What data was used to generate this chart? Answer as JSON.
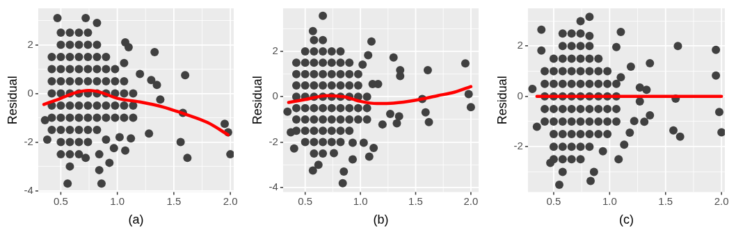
{
  "chart_data": [
    {
      "type": "scatter",
      "xlabel": "(a)",
      "ylabel": "Residual",
      "xlim": [
        0.3,
        2.03
      ],
      "ylim": [
        -4.05,
        3.5
      ],
      "xticks": [
        {
          "value": 0.5,
          "label": "0.5"
        },
        {
          "value": 0.75,
          "label": null
        },
        {
          "value": 1,
          "label": "1.0"
        },
        {
          "value": 1.25,
          "label": null
        },
        {
          "value": 1.5,
          "label": "1.5"
        },
        {
          "value": 1.75,
          "label": null
        },
        {
          "value": 2,
          "label": "2.0"
        }
      ],
      "yticks": [
        -4,
        {
          "value": -3,
          "label": null
        },
        -2,
        {
          "value": -1,
          "label": null
        },
        0,
        {
          "value": 1,
          "label": null
        },
        2,
        {
          "value": 3,
          "label": null
        }
      ],
      "grid": true,
      "legend": false,
      "series": [
        {
          "type": "scatter",
          "color": "#404040",
          "marker": "circle",
          "x": [
            0.42,
            0.42,
            0.42,
            0.42,
            0.42,
            0.42,
            0.42,
            0.5,
            0.5,
            0.5,
            0.5,
            0.5,
            0.5,
            0.5,
            0.5,
            0.5,
            0.5,
            0.5,
            0.58,
            0.58,
            0.58,
            0.58,
            0.58,
            0.58,
            0.58,
            0.58,
            0.58,
            0.58,
            0.58,
            0.58,
            0.66,
            0.66,
            0.66,
            0.66,
            0.66,
            0.66,
            0.66,
            0.66,
            0.66,
            0.66,
            0.66,
            0.74,
            0.74,
            0.74,
            0.74,
            0.74,
            0.74,
            0.74,
            0.74,
            0.74,
            0.74,
            0.82,
            0.82,
            0.82,
            0.82,
            0.82,
            0.82,
            0.82,
            0.82,
            0.9,
            0.9,
            0.9,
            0.9,
            0.9,
            0.9,
            0.98,
            0.98,
            0.98,
            0.98,
            0.98,
            1.06,
            1.06,
            1.06,
            1.06,
            1.14,
            1.14,
            1.14,
            0.47,
            0.72,
            0.82,
            0.56,
            0.86,
            0.84,
            0.93,
            0.84,
            0.72,
            0.97,
            1.07,
            1.12,
            1.28,
            1.07,
            1.1,
            1.33,
            1.06,
            1.6,
            1.2,
            1.3,
            1.35,
            1.38,
            1.58,
            1.56,
            1.62,
            1.95,
            1.98,
            2.0,
            0.36,
            0.38,
            0.9,
            1.02
          ],
          "values": [
            -1.5,
            -1,
            -0.5,
            0,
            0.5,
            1,
            1.5,
            -2.5,
            -2,
            -1.5,
            -1,
            -0.5,
            0,
            0.5,
            1,
            1.5,
            2,
            2.5,
            -3,
            -2.5,
            -2,
            -1.5,
            -1,
            -0.5,
            0,
            0.5,
            1,
            1.5,
            2,
            2.5,
            -2.5,
            -2,
            -1.5,
            -1,
            -0.5,
            0,
            0.5,
            1,
            1.5,
            2,
            2.5,
            -2,
            -1.5,
            -1,
            -0.5,
            0,
            0.5,
            1,
            1.5,
            2,
            2.5,
            -1.5,
            -1,
            -0.5,
            0,
            0.5,
            1,
            1.5,
            2,
            -1,
            -0.5,
            0,
            0.5,
            1,
            1.5,
            -1,
            -0.5,
            0,
            0.5,
            1,
            -1,
            -0.5,
            0,
            0.5,
            -1,
            -0.5,
            0,
            3.1,
            3.1,
            2.9,
            -3.7,
            -3.7,
            -3.15,
            -2.85,
            -2.5,
            -2.65,
            -2.25,
            -2.35,
            -1.85,
            -1.65,
            2.1,
            1.9,
            1.7,
            1.25,
            0.75,
            0.8,
            0.55,
            0.35,
            -0.25,
            -0.8,
            -2,
            -2.65,
            -1.25,
            -1.6,
            -2.5,
            -1.1,
            -1.9,
            -1.9,
            -1.8
          ]
        },
        {
          "type": "line",
          "color": "#ff0000",
          "marker": "none",
          "x": [
            0.35,
            0.5,
            0.62,
            0.75,
            0.85,
            1.0,
            1.2,
            1.4,
            1.6,
            1.8,
            1.98
          ],
          "values": [
            -0.45,
            -0.2,
            0.02,
            0.12,
            0.05,
            -0.2,
            -0.35,
            -0.55,
            -0.85,
            -1.2,
            -1.7
          ]
        }
      ]
    },
    {
      "type": "scatter",
      "xlabel": "(b)",
      "ylabel": "Residual",
      "xlim": [
        0.3,
        2.07
      ],
      "ylim": [
        -4.2,
        3.9
      ],
      "xticks": [
        {
          "value": 0.5,
          "label": "0.5"
        },
        {
          "value": 0.75,
          "label": null
        },
        {
          "value": 1,
          "label": "1.0"
        },
        {
          "value": 1.25,
          "label": null
        },
        {
          "value": 1.5,
          "label": "1.5"
        },
        {
          "value": 1.75,
          "label": null
        },
        {
          "value": 2,
          "label": "2.0"
        }
      ],
      "yticks": [
        -4,
        {
          "value": -3,
          "label": null
        },
        -2,
        {
          "value": -1,
          "label": null
        },
        0,
        {
          "value": 1,
          "label": null
        },
        2,
        {
          "value": 3,
          "label": null
        }
      ],
      "grid": true,
      "legend": false,
      "series": [
        {
          "type": "scatter",
          "color": "#404040",
          "marker": "circle",
          "x": [
            0.42,
            0.42,
            0.42,
            0.42,
            0.42,
            0.42,
            0.42,
            0.5,
            0.5,
            0.5,
            0.5,
            0.5,
            0.5,
            0.5,
            0.5,
            0.5,
            0.58,
            0.58,
            0.58,
            0.58,
            0.58,
            0.58,
            0.58,
            0.58,
            0.58,
            0.58,
            0.58,
            0.66,
            0.66,
            0.66,
            0.66,
            0.66,
            0.66,
            0.66,
            0.66,
            0.66,
            0.66,
            0.66,
            0.74,
            0.74,
            0.74,
            0.74,
            0.74,
            0.74,
            0.74,
            0.74,
            0.74,
            0.82,
            0.82,
            0.82,
            0.82,
            0.82,
            0.82,
            0.82,
            0.82,
            0.82,
            0.9,
            0.9,
            0.9,
            0.9,
            0.9,
            0.9,
            0.9,
            0.98,
            0.98,
            0.98,
            0.98,
            0.98,
            1.06,
            1.06,
            1.06,
            0.66,
            0.57,
            1.1,
            1.07,
            1.3,
            1.36,
            1.36,
            1.61,
            1.95,
            1.98,
            2.0,
            1.56,
            1.59,
            1.62,
            1.33,
            1.35,
            1.2,
            1.27,
            1.16,
            1.11,
            0.93,
            0.85,
            0.84,
            0.57,
            0.62,
            0.4,
            1.08,
            1.12,
            1.03,
            0.93,
            0.76,
            0.34,
            0.37,
            1.02
          ],
          "values": [
            -1.5,
            -1,
            -0.5,
            0,
            0.5,
            1,
            1.5,
            -2,
            -1.5,
            -1,
            -0.5,
            0,
            0.5,
            1,
            1.5,
            2,
            -2.5,
            -2,
            -1.5,
            -1,
            -0.5,
            0,
            0.5,
            1,
            1.5,
            2,
            2.5,
            -2.5,
            -2,
            -1.5,
            -1,
            -0.5,
            0,
            0.5,
            1,
            1.5,
            2,
            2.5,
            -2,
            -1.5,
            -1,
            -0.5,
            0,
            0.5,
            1,
            1.5,
            2,
            -2,
            -1.5,
            -1,
            -0.5,
            0,
            0.5,
            1,
            1.5,
            2,
            -1.5,
            -1,
            -0.5,
            0,
            0.5,
            1,
            1.5,
            -1,
            -0.5,
            0,
            0.5,
            1,
            -1,
            -0.5,
            0,
            3.57,
            2.9,
            2.44,
            1.83,
            1.73,
            1.17,
            0.91,
            1.17,
            1.47,
            0.12,
            -0.46,
            -0.1,
            -0.69,
            -1.12,
            -1.17,
            -0.86,
            -1.22,
            -0.76,
            0.56,
            0.56,
            -2.76,
            -3.3,
            -3.81,
            -3.25,
            -3.0,
            -2.28,
            -2.64,
            -2.26,
            -2.03,
            -2.03,
            -2.49,
            -0.66,
            -1.57,
            1.42
          ]
        },
        {
          "type": "line",
          "color": "#ff0000",
          "marker": "none",
          "x": [
            0.35,
            0.5,
            0.7,
            0.85,
            1.0,
            1.15,
            1.3,
            1.5,
            1.7,
            1.85,
            2.0
          ],
          "values": [
            -0.25,
            -0.12,
            0.05,
            0,
            -0.2,
            -0.3,
            -0.28,
            -0.15,
            0.05,
            0.2,
            0.45
          ]
        }
      ]
    },
    {
      "type": "scatter",
      "xlabel": "(c)",
      "ylabel": "Residual",
      "xlim": [
        0.27,
        2.03
      ],
      "ylim": [
        -3.8,
        3.5
      ],
      "xticks": [
        {
          "value": 0.5,
          "label": "0.5"
        },
        {
          "value": 0.75,
          "label": null
        },
        {
          "value": 1,
          "label": "1.0"
        },
        {
          "value": 1.25,
          "label": null
        },
        {
          "value": 1.5,
          "label": "1.5"
        },
        {
          "value": 1.75,
          "label": null
        },
        {
          "value": 2,
          "label": "2.0"
        }
      ],
      "yticks": [
        {
          "value": -3,
          "label": null
        },
        -2,
        {
          "value": -1,
          "label": null
        },
        0,
        {
          "value": 1,
          "label": null
        },
        2,
        {
          "value": 3,
          "label": null
        }
      ],
      "grid": true,
      "legend": false,
      "series": [
        {
          "type": "scatter",
          "color": "#404040",
          "marker": "circle",
          "x": [
            0.42,
            0.42,
            0.42,
            0.42,
            0.42,
            0.5,
            0.5,
            0.5,
            0.5,
            0.5,
            0.5,
            0.5,
            0.5,
            0.5,
            0.58,
            0.58,
            0.58,
            0.58,
            0.58,
            0.58,
            0.58,
            0.58,
            0.58,
            0.58,
            0.58,
            0.58,
            0.66,
            0.66,
            0.66,
            0.66,
            0.66,
            0.66,
            0.66,
            0.66,
            0.66,
            0.66,
            0.66,
            0.74,
            0.74,
            0.74,
            0.74,
            0.74,
            0.74,
            0.74,
            0.74,
            0.74,
            0.74,
            0.74,
            0.82,
            0.82,
            0.82,
            0.82,
            0.82,
            0.82,
            0.82,
            0.82,
            0.82,
            0.9,
            0.9,
            0.9,
            0.9,
            0.9,
            0.9,
            0.9,
            0.98,
            0.98,
            0.98,
            0.98,
            0.98,
            0.98,
            1.06,
            1.06,
            1.06,
            1.06,
            0.82,
            0.74,
            0.39,
            1.1,
            0.39,
            0.82,
            1.06,
            1.61,
            1.95,
            1.95,
            1.36,
            1.19,
            1.1,
            0.31,
            1.27,
            1.33,
            1.27,
            1.59,
            1.98,
            2.0,
            1.57,
            1.63,
            1.36,
            1.22,
            1.31,
            1.18,
            1.13,
            1.08,
            0.94,
            0.86,
            0.83,
            0.55,
            0.47,
            0.35
          ],
          "values": [
            -1,
            -0.5,
            0,
            0.5,
            1,
            -2.5,
            -2,
            -1.5,
            -1,
            -0.5,
            0,
            0.5,
            1,
            1.5,
            -3,
            -2.5,
            -2,
            -1.5,
            -1,
            -0.5,
            0,
            0.5,
            1,
            1.5,
            2,
            2.5,
            -2.5,
            -2,
            -1.5,
            -1,
            -0.5,
            0,
            0.5,
            1,
            1.5,
            2,
            2.5,
            -2.5,
            -2,
            -1.5,
            -1,
            -0.5,
            0,
            0.5,
            1,
            1.5,
            2,
            2.5,
            -2,
            -1.5,
            -1,
            -0.5,
            0,
            0.5,
            1,
            1.5,
            2,
            -1.5,
            -1,
            -0.5,
            0,
            0.5,
            1,
            1.5,
            -1.5,
            -1,
            -0.5,
            0,
            0.5,
            1,
            -1,
            -0.5,
            0,
            0.5,
            3.16,
            2.99,
            2.65,
            2.56,
            1.82,
            2.4,
            1.96,
            2.0,
            1.85,
            0.83,
            1.32,
            1.18,
            0.76,
            0.3,
            0.35,
            0.26,
            -0.2,
            -0.09,
            -0.62,
            -1.43,
            -1.35,
            -1.6,
            -0.75,
            -0.98,
            -1.01,
            -1.44,
            -1.92,
            -2.5,
            -2.18,
            -3.0,
            -3.36,
            -3.51,
            -2.64,
            -1.21
          ]
        },
        {
          "type": "line",
          "color": "#ff0000",
          "marker": "none",
          "x": [
            0.35,
            2.0
          ],
          "values": [
            0,
            0
          ]
        }
      ]
    }
  ]
}
